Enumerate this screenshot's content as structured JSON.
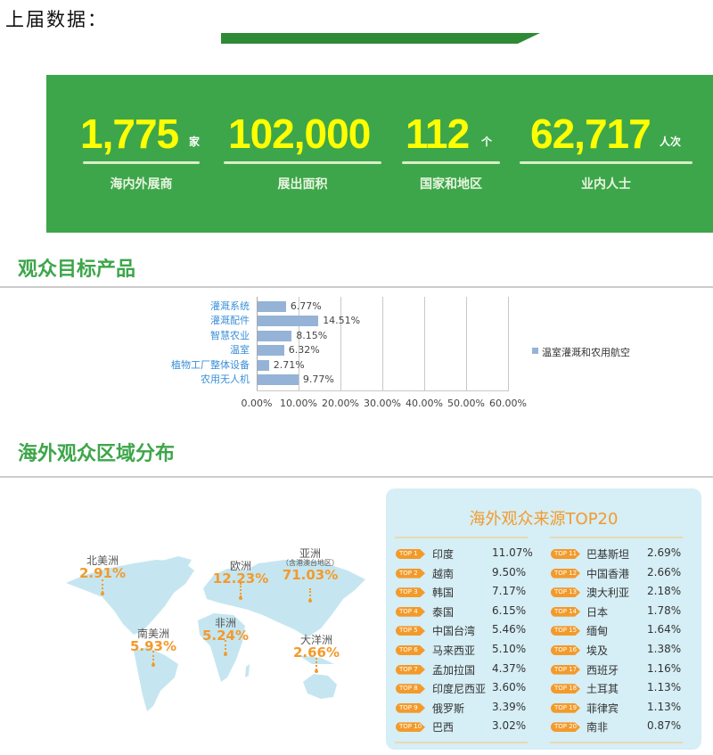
{
  "header": {
    "title": "上届数据："
  },
  "stats": [
    {
      "value": "1,775",
      "unit": "家",
      "label": "海内外展商"
    },
    {
      "value": "102,000",
      "unit": "",
      "label": "展出面积"
    },
    {
      "value": "112",
      "unit": "个",
      "label": "国家和地区"
    },
    {
      "value": "62,717",
      "unit": "人次",
      "label": "业内人士"
    }
  ],
  "section1": {
    "title": "观众目标产品"
  },
  "chart_data": {
    "type": "bar",
    "orientation": "horizontal",
    "categories": [
      "灌溉系统",
      "灌溉配件",
      "智慧农业",
      "温室",
      "植物工厂整体设备",
      "农用无人机"
    ],
    "series": [
      {
        "name": "温室灌溉和农用航空",
        "values": [
          6.77,
          14.51,
          8.15,
          6.32,
          2.71,
          9.77
        ]
      }
    ],
    "data_labels": [
      "6.77%",
      "14.51%",
      "8.15%",
      "6.32%",
      "2.71%",
      "9.77%"
    ],
    "xlim": [
      0,
      60
    ],
    "x_ticks": [
      "0.00%",
      "10.00%",
      "20.00%",
      "30.00%",
      "40.00%",
      "50.00%",
      "60.00%"
    ],
    "grid": true,
    "legend": "right",
    "bar_color": "#95b3d7",
    "label_color": "#3a8fd9"
  },
  "section2": {
    "title": "海外观众区域分布"
  },
  "regions": [
    {
      "name": "北美洲",
      "sub": "",
      "value": "2.91%"
    },
    {
      "name": "欧洲",
      "sub": "",
      "value": "12.23%"
    },
    {
      "name": "亚洲",
      "sub": "（含港澳台地区）",
      "value": "71.03%"
    },
    {
      "name": "南美洲",
      "sub": "",
      "value": "5.93%"
    },
    {
      "name": "非洲",
      "sub": "",
      "value": "5.24%"
    },
    {
      "name": "大洋洲",
      "sub": "",
      "value": "2.66%"
    }
  ],
  "top20": {
    "title": "海外观众来源TOP20",
    "items": [
      {
        "rank": "TOP 1",
        "name": "印度",
        "pct": "11.07%"
      },
      {
        "rank": "TOP 2",
        "name": "越南",
        "pct": "9.50%"
      },
      {
        "rank": "TOP 3",
        "name": "韩国",
        "pct": "7.17%"
      },
      {
        "rank": "TOP 4",
        "name": "泰国",
        "pct": "6.15%"
      },
      {
        "rank": "TOP 5",
        "name": "中国台湾",
        "pct": "5.46%"
      },
      {
        "rank": "TOP 6",
        "name": "马来西亚",
        "pct": "5.10%"
      },
      {
        "rank": "TOP 7",
        "name": "孟加拉国",
        "pct": "4.37%"
      },
      {
        "rank": "TOP 8",
        "name": "印度尼西亚",
        "pct": "3.60%"
      },
      {
        "rank": "TOP 9",
        "name": "俄罗斯",
        "pct": "3.39%"
      },
      {
        "rank": "TOP 10",
        "name": "巴西",
        "pct": "3.02%"
      },
      {
        "rank": "TOP 11",
        "name": "巴基斯坦",
        "pct": "2.69%"
      },
      {
        "rank": "TOP 12",
        "name": "中国香港",
        "pct": "2.66%"
      },
      {
        "rank": "TOP 13",
        "name": "澳大利亚",
        "pct": "2.18%"
      },
      {
        "rank": "TOP 14",
        "name": "日本",
        "pct": "1.78%"
      },
      {
        "rank": "TOP 15",
        "name": "缅甸",
        "pct": "1.64%"
      },
      {
        "rank": "TOP 16",
        "name": "埃及",
        "pct": "1.38%"
      },
      {
        "rank": "TOP 17",
        "name": "西班牙",
        "pct": "1.16%"
      },
      {
        "rank": "TOP 18",
        "name": "土耳其",
        "pct": "1.13%"
      },
      {
        "rank": "TOP 19",
        "name": "菲律宾",
        "pct": "1.13%"
      },
      {
        "rank": "TOP 20",
        "name": "南非",
        "pct": "0.87%"
      }
    ]
  },
  "colors": {
    "panel_green": "#3da64a",
    "number_yellow": "#ffff00",
    "accent_orange": "#f39a2b",
    "map_blue": "#c5e6f0",
    "box_bg": "#d6eef5"
  }
}
